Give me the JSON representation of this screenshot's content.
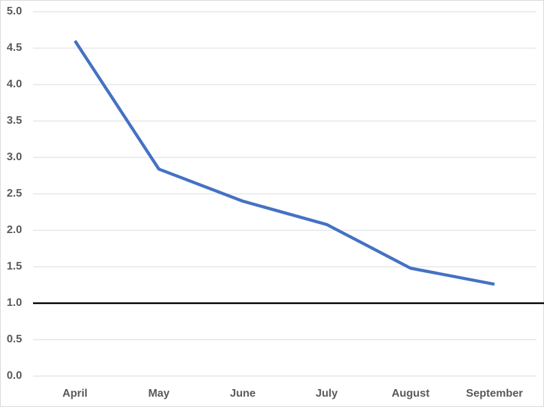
{
  "chart_data": {
    "type": "line",
    "categories": [
      "April",
      "May",
      "June",
      "July",
      "August",
      "September"
    ],
    "series": [
      {
        "color": "#4472c4",
        "values": [
          4.6,
          2.84,
          2.4,
          2.08,
          1.48,
          1.26
        ]
      }
    ],
    "reference_line": {
      "value": 1,
      "color": "#000000"
    },
    "ylim": [
      0,
      5
    ],
    "yticks": [
      {
        "value": 0,
        "label": "0.0"
      },
      {
        "value": 0.5,
        "label": "0.5"
      },
      {
        "value": 1,
        "label": "1.0"
      },
      {
        "value": 1.5,
        "label": "1.5"
      },
      {
        "value": 2,
        "label": "2.0"
      },
      {
        "value": 2.5,
        "label": "2.5"
      },
      {
        "value": 3,
        "label": "3.0"
      },
      {
        "value": 3.5,
        "label": "3.5"
      },
      {
        "value": 4,
        "label": "4.0"
      },
      {
        "value": 4.5,
        "label": "4.5"
      },
      {
        "value": 5,
        "label": "5.0"
      }
    ],
    "grid": true
  }
}
